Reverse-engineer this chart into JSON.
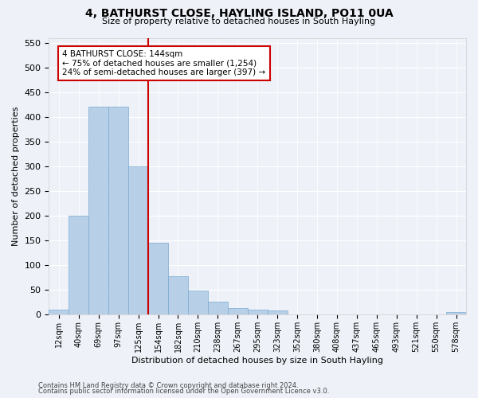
{
  "title": "4, BATHURST CLOSE, HAYLING ISLAND, PO11 0UA",
  "subtitle": "Size of property relative to detached houses in South Hayling",
  "xlabel": "Distribution of detached houses by size in South Hayling",
  "ylabel": "Number of detached properties",
  "bar_values": [
    10,
    200,
    420,
    420,
    300,
    145,
    78,
    49,
    25,
    13,
    10,
    8,
    0,
    0,
    0,
    0,
    0,
    0,
    0,
    0,
    5
  ],
  "bar_labels": [
    "12sqm",
    "40sqm",
    "69sqm",
    "97sqm",
    "125sqm",
    "154sqm",
    "182sqm",
    "210sqm",
    "238sqm",
    "267sqm",
    "295sqm",
    "323sqm",
    "352sqm",
    "380sqm",
    "408sqm",
    "437sqm",
    "465sqm",
    "493sqm",
    "521sqm",
    "550sqm",
    "578sqm"
  ],
  "bar_color": "#b8cfe8",
  "bar_edge_color": "#7aaad0",
  "annotation_text_line1": "4 BATHURST CLOSE: 144sqm",
  "annotation_text_line2": "← 75% of detached houses are smaller (1,254)",
  "annotation_text_line3": "24% of semi-detached houses are larger (397) →",
  "annotation_box_facecolor": "#ffffff",
  "annotation_box_edgecolor": "#cc0000",
  "vline_color": "#cc0000",
  "vline_x": 4.5,
  "ylim": [
    0,
    560
  ],
  "yticks": [
    0,
    50,
    100,
    150,
    200,
    250,
    300,
    350,
    400,
    450,
    500,
    550
  ],
  "footnote1": "Contains HM Land Registry data © Crown copyright and database right 2024.",
  "footnote2": "Contains public sector information licensed under the Open Government Licence v3.0.",
  "background_color": "#eef2f8",
  "plot_bg_color": "#eef2f8",
  "grid_color": "#ffffff",
  "title_fontsize": 10,
  "subtitle_fontsize": 8,
  "ylabel_fontsize": 8,
  "xlabel_fontsize": 8,
  "ytick_fontsize": 8,
  "xtick_fontsize": 7,
  "footnote_fontsize": 6,
  "annot_fontsize": 7.5
}
